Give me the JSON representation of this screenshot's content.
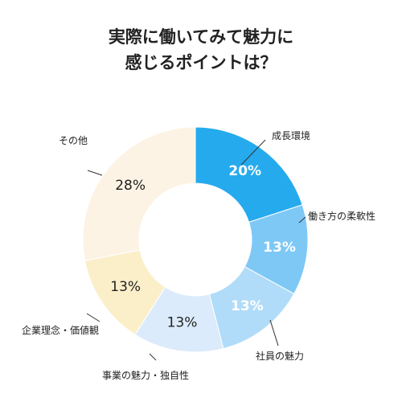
{
  "title_line1": "実際に働いてみて魅力に",
  "title_line2": "感じるポイントは？",
  "chart_data": {
    "type": "pie",
    "donut": true,
    "title": "実際に働いてみて魅力に 感じるポイントは？",
    "legend": "none",
    "slices": [
      {
        "label": "成長環境",
        "value": 20,
        "display": "20%",
        "color": "#26aaee",
        "text_color": "#ffffff",
        "bold": true
      },
      {
        "label": "働き方の柔軟性",
        "value": 13,
        "display": "13%",
        "color": "#7ec8f6",
        "text_color": "#ffffff",
        "bold": true
      },
      {
        "label": "社員の魅力",
        "value": 13,
        "display": "13%",
        "color": "#b0dcf9",
        "text_color": "#ffffff",
        "bold": true
      },
      {
        "label": "事業の魅力・独自性",
        "value": 13,
        "display": "13%",
        "color": "#dcebfb",
        "text_color": "#222222",
        "bold": false
      },
      {
        "label": "企業理念・価値観",
        "value": 13,
        "display": "13%",
        "color": "#fbefc9",
        "text_color": "#222222",
        "bold": false
      },
      {
        "label": "その他",
        "value": 28,
        "display": "28%",
        "color": "#fdf3e4",
        "text_color": "#222222",
        "bold": false
      }
    ]
  }
}
